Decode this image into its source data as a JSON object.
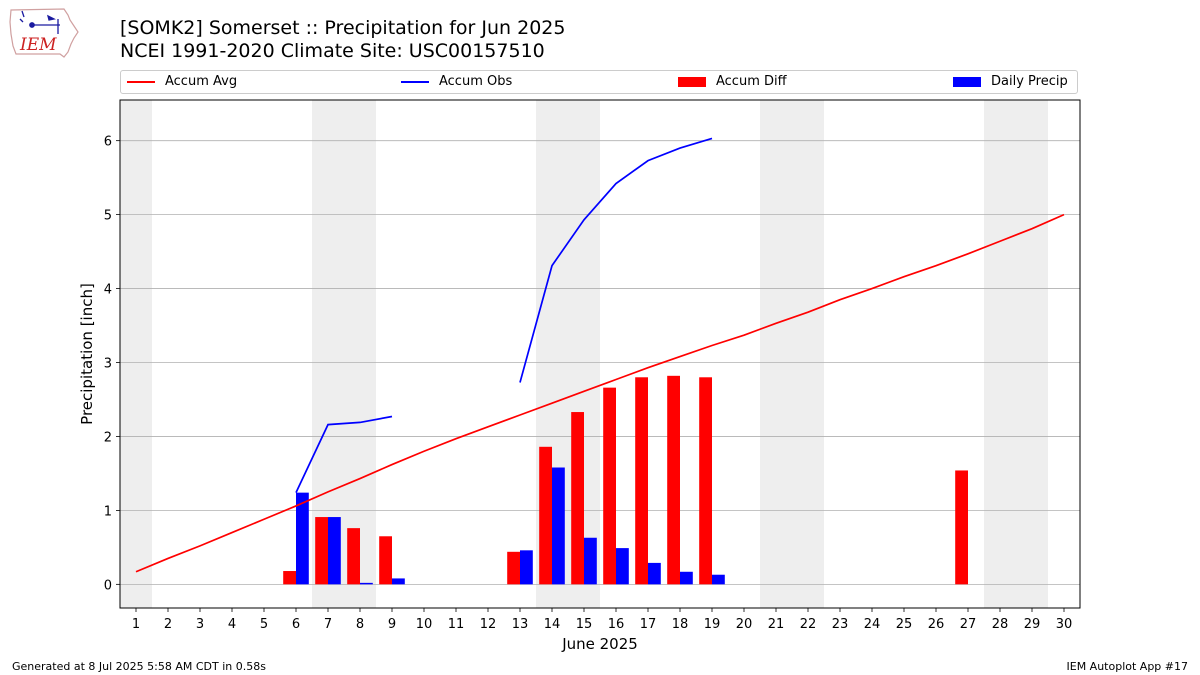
{
  "header": {
    "title": "[SOMK2] Somerset :: Precipitation for Jun 2025",
    "subtitle": "NCEI 1991-2020 Climate Site: USC00157510",
    "logo_text": "IEM"
  },
  "footer": {
    "generated": "Generated at 8 Jul 2025 5:58 AM CDT in 0.58s",
    "app": "IEM Autoplot App #17"
  },
  "colors": {
    "avg": "#ff0000",
    "obs": "#0000ff",
    "diff": "#ff0000",
    "daily": "#0000ff",
    "weekend_band": "#eeeeee",
    "grid": "#b0b0b0"
  },
  "chart_data": {
    "type": "bar",
    "xlabel": "June 2025",
    "ylabel": "Precipitation [inch]",
    "xlim": [
      0.5,
      30.5
    ],
    "ylim": [
      -0.32,
      6.55
    ],
    "x_ticks": [
      1,
      2,
      3,
      4,
      5,
      6,
      7,
      8,
      9,
      10,
      11,
      12,
      13,
      14,
      15,
      16,
      17,
      18,
      19,
      20,
      21,
      22,
      23,
      24,
      25,
      26,
      27,
      28,
      29,
      30
    ],
    "y_ticks": [
      0,
      1,
      2,
      3,
      4,
      5,
      6
    ],
    "grid": "horizontal",
    "legend_position": "top",
    "shaded_days": [
      [
        0.5,
        1.5
      ],
      [
        6.5,
        8.5
      ],
      [
        13.5,
        15.5
      ],
      [
        20.5,
        22.5
      ],
      [
        27.5,
        29.5
      ]
    ],
    "series": [
      {
        "name": "Accum Avg",
        "kind": "line",
        "color": "#ff0000",
        "points": [
          [
            1,
            0.17
          ],
          [
            2,
            0.35
          ],
          [
            3,
            0.52
          ],
          [
            4,
            0.7
          ],
          [
            5,
            0.88
          ],
          [
            6,
            1.06
          ],
          [
            7,
            1.25
          ],
          [
            8,
            1.43
          ],
          [
            9,
            1.62
          ],
          [
            10,
            1.8
          ],
          [
            11,
            1.97
          ],
          [
            12,
            2.13
          ],
          [
            13,
            2.29
          ],
          [
            14,
            2.45
          ],
          [
            15,
            2.61
          ],
          [
            16,
            2.77
          ],
          [
            17,
            2.93
          ],
          [
            18,
            3.08
          ],
          [
            19,
            3.23
          ],
          [
            20,
            3.37
          ],
          [
            21,
            3.53
          ],
          [
            22,
            3.68
          ],
          [
            23,
            3.85
          ],
          [
            24,
            4.0
          ],
          [
            25,
            4.16
          ],
          [
            26,
            4.31
          ],
          [
            27,
            4.47
          ],
          [
            28,
            4.64
          ],
          [
            29,
            4.81
          ],
          [
            30,
            5.0
          ]
        ]
      },
      {
        "name": "Accum Obs",
        "kind": "line",
        "color": "#0000ff",
        "segments": [
          [
            [
              6,
              1.24
            ],
            [
              7,
              2.16
            ],
            [
              8,
              2.19
            ],
            [
              9,
              2.27
            ]
          ],
          [
            [
              13,
              2.73
            ],
            [
              14,
              4.31
            ],
            [
              15,
              4.93
            ],
            [
              16,
              5.42
            ],
            [
              17,
              5.73
            ],
            [
              18,
              5.9
            ],
            [
              19,
              6.03
            ]
          ]
        ]
      },
      {
        "name": "Accum Diff",
        "kind": "bar",
        "color": "#ff0000",
        "points": [
          [
            6,
            0.18
          ],
          [
            7,
            0.91
          ],
          [
            8,
            0.76
          ],
          [
            9,
            0.65
          ],
          [
            13,
            0.44
          ],
          [
            14,
            1.86
          ],
          [
            15,
            2.33
          ],
          [
            16,
            2.66
          ],
          [
            17,
            2.8
          ],
          [
            18,
            2.82
          ],
          [
            19,
            2.8
          ],
          [
            27,
            1.54
          ]
        ]
      },
      {
        "name": "Daily Precip",
        "kind": "bar",
        "color": "#0000ff",
        "points": [
          [
            6,
            1.24
          ],
          [
            7,
            0.91
          ],
          [
            8,
            0.02
          ],
          [
            9,
            0.08
          ],
          [
            13,
            0.46
          ],
          [
            14,
            1.58
          ],
          [
            15,
            0.63
          ],
          [
            16,
            0.49
          ],
          [
            17,
            0.29
          ],
          [
            18,
            0.17
          ],
          [
            19,
            0.13
          ]
        ]
      }
    ]
  }
}
